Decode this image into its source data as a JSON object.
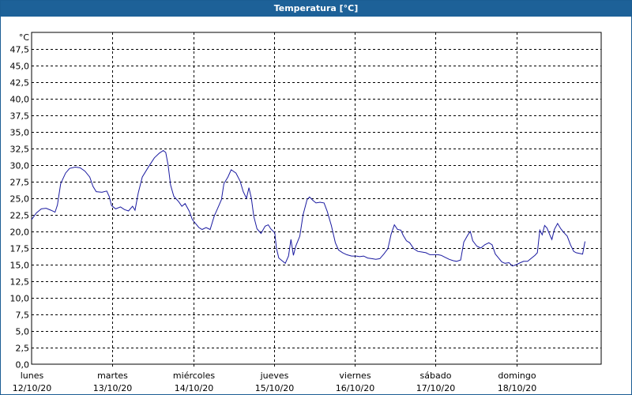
{
  "window": {
    "title": "Temperatura [°C]"
  },
  "chart_data": {
    "type": "line",
    "title": "Temperatura [°C]",
    "ylabel": "°C",
    "xlabel": "",
    "ylim": [
      0,
      50
    ],
    "y_ticks": [
      "0,0",
      "2,5",
      "5,0",
      "7,5",
      "10,0",
      "12,5",
      "15,0",
      "17,5",
      "20,0",
      "22,5",
      "25,0",
      "27,5",
      "30,0",
      "32,5",
      "35,0",
      "37,5",
      "40,0",
      "42,5",
      "45,0",
      "47,5"
    ],
    "x_days": [
      {
        "day": "lunes",
        "date": "12/10/20"
      },
      {
        "day": "martes",
        "date": "13/10/20"
      },
      {
        "day": "miércoles",
        "date": "14/10/20"
      },
      {
        "day": "jueves",
        "date": "15/10/20"
      },
      {
        "day": "viernes",
        "date": "16/10/20"
      },
      {
        "day": "sábado",
        "date": "17/10/20"
      },
      {
        "day": "domingo",
        "date": "18/10/20"
      }
    ],
    "x_unit": "days since 12/10/20 00:00",
    "xlim": [
      0,
      7.05
    ],
    "grid": true,
    "line_color": "#1a1aa0",
    "series": [
      {
        "name": "",
        "points": [
          [
            0.0,
            21.8
          ],
          [
            0.06,
            22.8
          ],
          [
            0.12,
            23.4
          ],
          [
            0.18,
            23.5
          ],
          [
            0.24,
            23.2
          ],
          [
            0.29,
            22.9
          ],
          [
            0.32,
            24.0
          ],
          [
            0.36,
            27.2
          ],
          [
            0.42,
            28.8
          ],
          [
            0.47,
            29.5
          ],
          [
            0.54,
            29.7
          ],
          [
            0.6,
            29.6
          ],
          [
            0.66,
            29.1
          ],
          [
            0.72,
            28.2
          ],
          [
            0.76,
            26.8
          ],
          [
            0.8,
            26.0
          ],
          [
            0.87,
            25.9
          ],
          [
            0.93,
            26.1
          ],
          [
            0.96,
            25.3
          ],
          [
            0.99,
            23.9
          ],
          [
            1.04,
            23.4
          ],
          [
            1.1,
            23.7
          ],
          [
            1.15,
            23.3
          ],
          [
            1.2,
            23.1
          ],
          [
            1.25,
            23.8
          ],
          [
            1.28,
            23.2
          ],
          [
            1.32,
            25.8
          ],
          [
            1.37,
            28.2
          ],
          [
            1.45,
            29.8
          ],
          [
            1.52,
            31.1
          ],
          [
            1.58,
            31.8
          ],
          [
            1.63,
            32.2
          ],
          [
            1.66,
            31.9
          ],
          [
            1.69,
            30.0
          ],
          [
            1.72,
            27.0
          ],
          [
            1.76,
            25.3
          ],
          [
            1.82,
            24.5
          ],
          [
            1.86,
            23.8
          ],
          [
            1.9,
            24.2
          ],
          [
            1.95,
            23.1
          ],
          [
            1.99,
            21.8
          ],
          [
            2.03,
            21.2
          ],
          [
            2.07,
            20.6
          ],
          [
            2.11,
            20.3
          ],
          [
            2.16,
            20.6
          ],
          [
            2.21,
            20.3
          ],
          [
            2.26,
            22.3
          ],
          [
            2.3,
            23.4
          ],
          [
            2.35,
            24.8
          ],
          [
            2.38,
            27.2
          ],
          [
            2.43,
            28.2
          ],
          [
            2.47,
            29.3
          ],
          [
            2.53,
            28.8
          ],
          [
            2.58,
            27.6
          ],
          [
            2.62,
            26.0
          ],
          [
            2.66,
            25.0
          ],
          [
            2.69,
            26.6
          ],
          [
            2.72,
            25.0
          ],
          [
            2.75,
            22.3
          ],
          [
            2.79,
            20.4
          ],
          [
            2.84,
            19.7
          ],
          [
            2.89,
            20.8
          ],
          [
            2.93,
            21.0
          ],
          [
            2.96,
            20.4
          ],
          [
            3.01,
            19.8
          ],
          [
            3.03,
            17.5
          ],
          [
            3.06,
            16.0
          ],
          [
            3.1,
            15.6
          ],
          [
            3.14,
            15.2
          ],
          [
            3.18,
            16.3
          ],
          [
            3.21,
            18.8
          ],
          [
            3.24,
            16.4
          ],
          [
            3.27,
            17.8
          ],
          [
            3.32,
            19.3
          ],
          [
            3.36,
            22.5
          ],
          [
            3.41,
            24.8
          ],
          [
            3.44,
            25.2
          ],
          [
            3.48,
            24.7
          ],
          [
            3.52,
            24.3
          ],
          [
            3.57,
            24.4
          ],
          [
            3.62,
            24.3
          ],
          [
            3.66,
            23.0
          ],
          [
            3.71,
            20.9
          ],
          [
            3.76,
            18.3
          ],
          [
            3.8,
            17.2
          ],
          [
            3.85,
            16.8
          ],
          [
            3.9,
            16.5
          ],
          [
            3.96,
            16.3
          ],
          [
            4.02,
            16.3
          ],
          [
            4.06,
            16.2
          ],
          [
            4.11,
            16.3
          ],
          [
            4.16,
            16.0
          ],
          [
            4.21,
            15.9
          ],
          [
            4.26,
            15.8
          ],
          [
            4.31,
            15.9
          ],
          [
            4.36,
            16.6
          ],
          [
            4.41,
            17.4
          ],
          [
            4.45,
            19.6
          ],
          [
            4.49,
            21.0
          ],
          [
            4.53,
            20.3
          ],
          [
            4.57,
            20.2
          ],
          [
            4.6,
            19.4
          ],
          [
            4.64,
            18.6
          ],
          [
            4.68,
            18.3
          ],
          [
            4.73,
            17.4
          ],
          [
            4.78,
            17.0
          ],
          [
            4.83,
            16.9
          ],
          [
            4.88,
            16.8
          ],
          [
            4.93,
            16.5
          ],
          [
            4.98,
            16.5
          ],
          [
            5.03,
            16.5
          ],
          [
            5.07,
            16.4
          ],
          [
            5.12,
            16.1
          ],
          [
            5.17,
            15.8
          ],
          [
            5.22,
            15.6
          ],
          [
            5.26,
            15.5
          ],
          [
            5.31,
            15.7
          ],
          [
            5.35,
            18.4
          ],
          [
            5.4,
            19.5
          ],
          [
            5.43,
            20.0
          ],
          [
            5.46,
            18.6
          ],
          [
            5.51,
            17.8
          ],
          [
            5.56,
            17.5
          ],
          [
            5.61,
            18.0
          ],
          [
            5.66,
            18.3
          ],
          [
            5.7,
            18.0
          ],
          [
            5.74,
            16.6
          ],
          [
            5.78,
            16.0
          ],
          [
            5.82,
            15.4
          ],
          [
            5.86,
            15.2
          ],
          [
            5.91,
            15.3
          ],
          [
            5.95,
            14.8
          ],
          [
            6.0,
            15.0
          ],
          [
            6.05,
            15.3
          ],
          [
            6.09,
            15.5
          ],
          [
            6.14,
            15.5
          ],
          [
            6.18,
            15.9
          ],
          [
            6.23,
            16.4
          ],
          [
            6.26,
            16.8
          ],
          [
            6.29,
            20.2
          ],
          [
            6.32,
            19.5
          ],
          [
            6.35,
            20.9
          ],
          [
            6.38,
            20.5
          ],
          [
            6.42,
            19.3
          ],
          [
            6.44,
            18.8
          ],
          [
            6.47,
            20.3
          ],
          [
            6.51,
            21.2
          ],
          [
            6.55,
            20.4
          ],
          [
            6.59,
            19.8
          ],
          [
            6.63,
            19.3
          ],
          [
            6.67,
            18.0
          ],
          [
            6.71,
            17.0
          ],
          [
            6.74,
            16.8
          ],
          [
            6.78,
            16.7
          ],
          [
            6.82,
            16.6
          ],
          [
            6.85,
            18.5
          ]
        ]
      }
    ]
  }
}
